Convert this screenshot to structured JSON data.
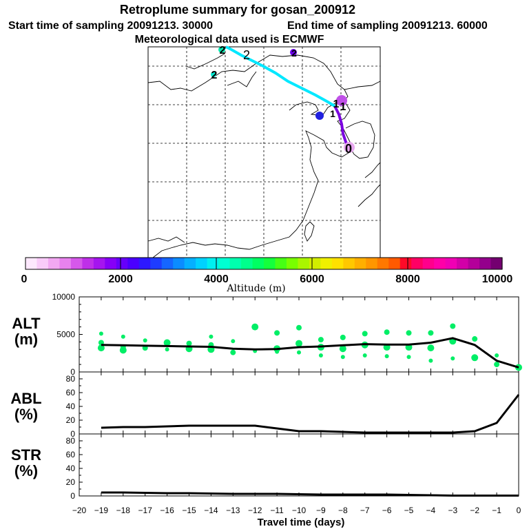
{
  "title": "Retroplume summary for gosan_200912",
  "start_label": "Start time of sampling 20091213. 30000",
  "end_label": "End time of sampling 20091213. 60000",
  "met_label": "Meteorological data used is ECMWF",
  "colorbar": {
    "label": "Altitude (m)",
    "ticks": [
      "0",
      "2000",
      "4000",
      "6000",
      "8000",
      "10000"
    ],
    "colors": [
      "#fde8fd",
      "#f9cbf9",
      "#f2a8f2",
      "#e882ee",
      "#d658ea",
      "#bf2fe9",
      "#a515ef",
      "#8600f7",
      "#6600fb",
      "#4a00ff",
      "#2d18ff",
      "#1e3cff",
      "#1566ff",
      "#0b8cff",
      "#05b0ff",
      "#00d2ff",
      "#00f0f0",
      "#00ffd2",
      "#00ffae",
      "#00ff8c",
      "#00ff62",
      "#14ff3c",
      "#46ff14",
      "#78ff00",
      "#aaf500",
      "#d2ee00",
      "#f0f000",
      "#ffe100",
      "#ffc800",
      "#ffaf00",
      "#ff9600",
      "#ff7800",
      "#ff5a00",
      "#ff0a28",
      "#ff0064",
      "#ff008c",
      "#ff00a8",
      "#f000b4",
      "#d200a8",
      "#b4009a",
      "#94008c",
      "#740070"
    ]
  },
  "map_labels": [
    "2",
    "2",
    "2",
    "2",
    "1",
    "1",
    "1",
    "0"
  ],
  "x_axis": {
    "label": "Travel time (days)",
    "ticks": [
      "−20",
      "−19",
      "−18",
      "−17",
      "−16",
      "−15",
      "−14",
      "−13",
      "−12",
      "−11",
      "−10",
      "−9",
      "−8",
      "−7",
      "−6",
      "−5",
      "−4",
      "−3",
      "−2",
      "−1",
      "0"
    ]
  },
  "chart_data": [
    {
      "type": "line",
      "panel": "ALT",
      "label_line1": "ALT",
      "label_line2": "(m)",
      "ylim": [
        0,
        10000
      ],
      "yticks": [
        "10000",
        "5000",
        "0"
      ],
      "ytick_values": [
        10000,
        5000,
        0
      ],
      "x": [
        -19,
        -18,
        -17,
        -16,
        -15,
        -14,
        -13,
        -12,
        -11,
        -10,
        -9,
        -8,
        -7,
        -6,
        -5,
        -4,
        -3,
        -2,
        -1,
        0
      ],
      "values": [
        3600,
        3550,
        3500,
        3450,
        3400,
        3350,
        3100,
        3000,
        3050,
        3300,
        3400,
        3550,
        3700,
        3650,
        3650,
        3900,
        4500,
        3600,
        1500,
        600
      ],
      "scatter": [
        {
          "x": -19,
          "y": 5100
        },
        {
          "x": -19,
          "y": 3900
        },
        {
          "x": -19,
          "y": 3200
        },
        {
          "x": -18,
          "y": 4700
        },
        {
          "x": -18,
          "y": 3300
        },
        {
          "x": -18,
          "y": 2900
        },
        {
          "x": -17,
          "y": 4200
        },
        {
          "x": -17,
          "y": 3200
        },
        {
          "x": -16,
          "y": 3900
        },
        {
          "x": -16,
          "y": 3000
        },
        {
          "x": -15,
          "y": 3800
        },
        {
          "x": -15,
          "y": 3100
        },
        {
          "x": -14,
          "y": 4700
        },
        {
          "x": -14,
          "y": 3600
        },
        {
          "x": -14,
          "y": 3000
        },
        {
          "x": -13,
          "y": 4100
        },
        {
          "x": -13,
          "y": 2600
        },
        {
          "x": -12,
          "y": 6000
        },
        {
          "x": -12,
          "y": 2800
        },
        {
          "x": -11,
          "y": 5200
        },
        {
          "x": -11,
          "y": 3100
        },
        {
          "x": -11,
          "y": 2700
        },
        {
          "x": -10,
          "y": 5900
        },
        {
          "x": -10,
          "y": 3800
        },
        {
          "x": -10,
          "y": 2600
        },
        {
          "x": -9,
          "y": 4300
        },
        {
          "x": -9,
          "y": 3300
        },
        {
          "x": -9,
          "y": 2200
        },
        {
          "x": -8,
          "y": 4600
        },
        {
          "x": -8,
          "y": 3100
        },
        {
          "x": -8,
          "y": 2000
        },
        {
          "x": -7,
          "y": 5100
        },
        {
          "x": -7,
          "y": 3600
        },
        {
          "x": -7,
          "y": 2200
        },
        {
          "x": -6,
          "y": 5300
        },
        {
          "x": -6,
          "y": 3300
        },
        {
          "x": -6,
          "y": 2100
        },
        {
          "x": -5,
          "y": 5200
        },
        {
          "x": -5,
          "y": 3300
        },
        {
          "x": -5,
          "y": 2000
        },
        {
          "x": -4,
          "y": 5200
        },
        {
          "x": -4,
          "y": 3200
        },
        {
          "x": -4,
          "y": 1500
        },
        {
          "x": -3,
          "y": 6100
        },
        {
          "x": -3,
          "y": 4100
        },
        {
          "x": -3,
          "y": 1800
        },
        {
          "x": -2,
          "y": 4400
        },
        {
          "x": -2,
          "y": 1900
        },
        {
          "x": -1,
          "y": 2200
        },
        {
          "x": -1,
          "y": 1000
        },
        {
          "x": 0,
          "y": 600
        }
      ]
    },
    {
      "type": "line",
      "panel": "ABL",
      "label_line1": "ABL",
      "label_line2": "(%)",
      "ylim": [
        0,
        90
      ],
      "yticks": [
        "80",
        "60",
        "40",
        "20",
        "0"
      ],
      "ytick_values": [
        80,
        60,
        40,
        20,
        0
      ],
      "x": [
        -19,
        -18,
        -17,
        -16,
        -15,
        -14,
        -13,
        -12,
        -11,
        -10,
        -9,
        -8,
        -7,
        -6,
        -5,
        -4,
        -3,
        -2,
        -1,
        0
      ],
      "values": [
        9,
        10,
        10,
        11,
        12,
        12,
        12,
        12,
        8,
        4,
        4,
        3,
        2,
        2,
        2,
        2,
        2,
        4,
        16,
        57
      ]
    },
    {
      "type": "line",
      "panel": "STR",
      "label_line1": "STR",
      "label_line2": "(%)",
      "ylim": [
        0,
        90
      ],
      "yticks": [
        "80",
        "60",
        "40",
        "20",
        "0"
      ],
      "ytick_values": [
        80,
        60,
        40,
        20,
        0
      ],
      "x": [
        -19,
        -18,
        -17,
        -16,
        -15,
        -14,
        -13,
        -12,
        -11,
        -10,
        -9,
        -8,
        -7,
        -6,
        -5,
        -4,
        -3,
        -2,
        -1,
        0
      ],
      "values": [
        5,
        5,
        4.5,
        4,
        4,
        3.5,
        3,
        3,
        3,
        2.5,
        2,
        2,
        2,
        2,
        1.5,
        1,
        0.5,
        0.5,
        0.5,
        0.5
      ]
    }
  ]
}
